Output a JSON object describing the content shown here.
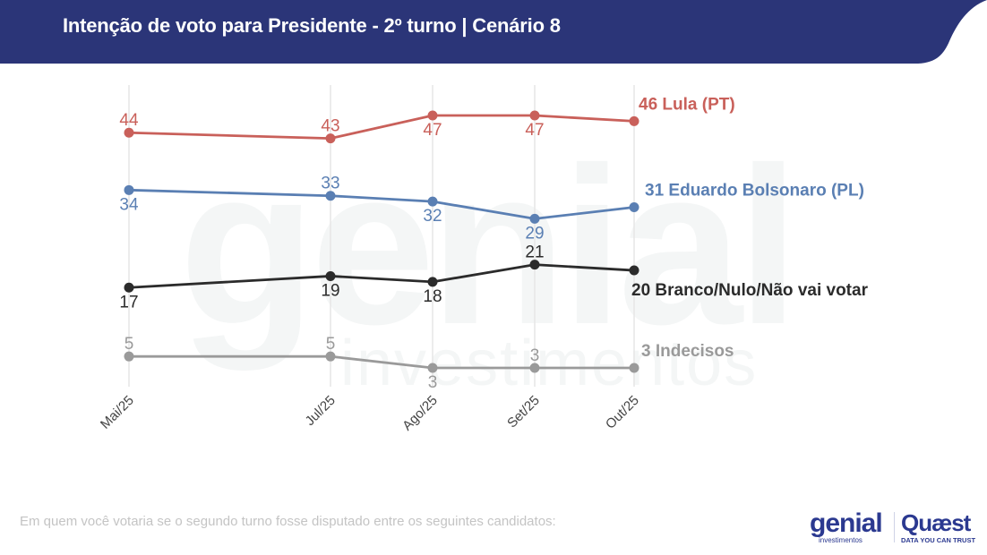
{
  "header": {
    "title": "Intenção de voto para Presidente - 2º turno | Cenário 8",
    "background_color": "#2b3578"
  },
  "watermark": {
    "main": "genial",
    "sub": "investimentos"
  },
  "footer": {
    "note": "Em quem você votaria se o segundo turno fosse disputado entre os seguintes candidatos:",
    "logo_genial": "genial",
    "logo_genial_sub": "investimentos",
    "logo_quaest": "Quæst",
    "logo_quaest_sub": "DATA YOU CAN TRUST"
  },
  "chart_data": {
    "type": "line",
    "title": "Intenção de voto para Presidente - 2º turno | Cenário 8",
    "xlabel": "",
    "ylabel": "",
    "x": [
      "Mai/25",
      "Jul/25",
      "Ago/25",
      "Set/25",
      "Out/25"
    ],
    "x_positions": [
      0,
      2,
      3,
      4,
      5
    ],
    "ylim": [
      3,
      47
    ],
    "grid": "vertical",
    "legend": "right end labels",
    "series": [
      {
        "name": "Lula (PT)",
        "end_label": "46 Lula (PT)",
        "color": "#c9605a",
        "values": [
          44,
          43,
          47,
          47,
          46
        ],
        "label_pos": [
          "above",
          "above",
          "below",
          "below",
          "end"
        ]
      },
      {
        "name": "Eduardo Bolsonaro (PL)",
        "end_label": "31 Eduardo Bolsonaro (PL)",
        "color": "#5a7fb3",
        "values": [
          34,
          33,
          32,
          29,
          31
        ],
        "label_pos": [
          "below",
          "above",
          "below",
          "below",
          "end"
        ]
      },
      {
        "name": "Branco/Nulo/Não vai votar",
        "end_label": "20 Branco/Nulo/Não vai votar",
        "color": "#2b2b2b",
        "values": [
          17,
          19,
          18,
          21,
          20
        ],
        "label_pos": [
          "below",
          "below",
          "below",
          "above",
          "end"
        ]
      },
      {
        "name": "Indecisos",
        "end_label": "3 Indecisos",
        "color": "#9a9a9a",
        "values": [
          5,
          5,
          3,
          3,
          3
        ],
        "label_pos": [
          "above",
          "above",
          "below",
          "above",
          "end"
        ]
      }
    ]
  }
}
